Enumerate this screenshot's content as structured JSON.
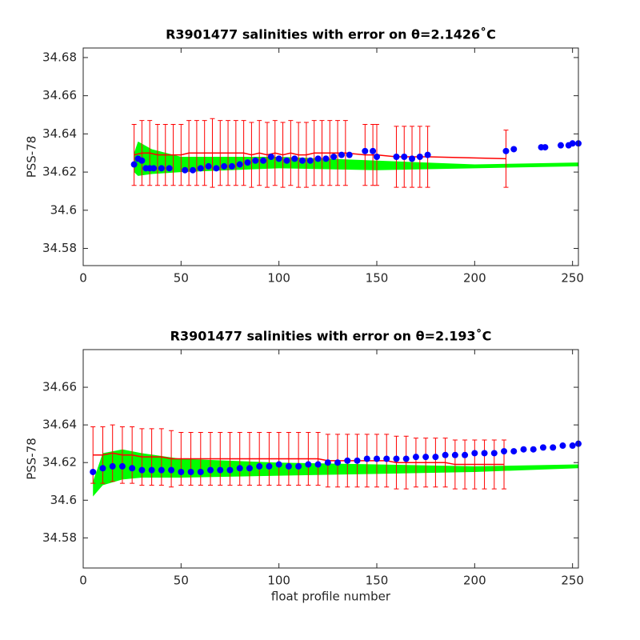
{
  "chart_data": [
    {
      "type": "errorbar",
      "title": "R3901477 salinities with error on θ=2.1426˚C",
      "ylabel": "PSS-78",
      "xlim": [
        0,
        253
      ],
      "xticks": [
        0,
        50,
        100,
        150,
        200,
        250
      ],
      "ylim": [
        34.571,
        34.685
      ],
      "yticks": [
        34.58,
        34.6,
        34.62,
        34.64,
        34.66,
        34.68
      ],
      "band": {
        "color": "#00ff00",
        "x": [
          26,
          28,
          35,
          50,
          100,
          150,
          200,
          253
        ],
        "lower": [
          34.62,
          34.618,
          34.619,
          34.62,
          34.622,
          34.621,
          34.622,
          34.623
        ],
        "upper": [
          34.63,
          34.636,
          34.632,
          34.628,
          34.628,
          34.626,
          34.624,
          34.625
        ]
      },
      "mapped": {
        "color": "#ff0000",
        "x": [
          26,
          30,
          34,
          38,
          42,
          46,
          50,
          54,
          58,
          62,
          66,
          70,
          74,
          78,
          82,
          86,
          90,
          94,
          98,
          102,
          106,
          110,
          114,
          118,
          122,
          126,
          130,
          134,
          144,
          148,
          150,
          160,
          164,
          168,
          172,
          176,
          216
        ],
        "values": [
          34.629,
          34.63,
          34.63,
          34.629,
          34.629,
          34.629,
          34.629,
          34.63,
          34.63,
          34.63,
          34.63,
          34.63,
          34.63,
          34.63,
          34.63,
          34.629,
          34.63,
          34.629,
          34.63,
          34.629,
          34.63,
          34.629,
          34.629,
          34.63,
          34.63,
          34.63,
          34.63,
          34.63,
          34.629,
          34.629,
          34.629,
          34.628,
          34.628,
          34.628,
          34.628,
          34.628,
          34.627
        ],
        "errors": [
          0.016,
          0.017,
          0.017,
          0.016,
          0.016,
          0.016,
          0.016,
          0.017,
          0.017,
          0.017,
          0.018,
          0.017,
          0.017,
          0.017,
          0.017,
          0.017,
          0.017,
          0.017,
          0.017,
          0.017,
          0.017,
          0.017,
          0.017,
          0.017,
          0.017,
          0.017,
          0.017,
          0.017,
          0.016,
          0.016,
          0.016,
          0.016,
          0.016,
          0.016,
          0.016,
          0.016,
          0.015
        ]
      },
      "float": {
        "color": "#0000ff",
        "x": [
          26,
          28,
          30,
          32,
          34,
          36,
          40,
          44,
          52,
          56,
          60,
          64,
          68,
          72,
          76,
          80,
          84,
          88,
          92,
          96,
          100,
          104,
          108,
          112,
          116,
          120,
          124,
          128,
          132,
          136,
          144,
          148,
          150,
          160,
          164,
          168,
          172,
          176,
          216,
          220,
          234,
          236,
          244,
          248,
          250,
          253
        ],
        "values": [
          34.624,
          34.627,
          34.626,
          34.622,
          34.622,
          34.622,
          34.622,
          34.622,
          34.621,
          34.621,
          34.622,
          34.623,
          34.622,
          34.623,
          34.623,
          34.624,
          34.625,
          34.626,
          34.626,
          34.628,
          34.627,
          34.626,
          34.627,
          34.626,
          34.626,
          34.627,
          34.627,
          34.628,
          34.629,
          34.629,
          34.631,
          34.631,
          34.628,
          34.628,
          34.628,
          34.627,
          34.628,
          34.629,
          34.631,
          34.632,
          34.633,
          34.633,
          34.634,
          34.634,
          34.635,
          34.635
        ]
      }
    },
    {
      "type": "errorbar",
      "title": "R3901477 salinities with error on θ=2.193˚C",
      "ylabel": "PSS-78",
      "xlabel": "float profile number",
      "xlim": [
        0,
        253
      ],
      "xticks": [
        0,
        50,
        100,
        150,
        200,
        250
      ],
      "ylim": [
        34.564,
        34.68
      ],
      "yticks": [
        34.58,
        34.6,
        34.62,
        34.64,
        34.66
      ],
      "band": {
        "color": "#00ff00",
        "x": [
          5,
          10,
          20,
          30,
          50,
          100,
          150,
          200,
          253
        ],
        "lower": [
          34.602,
          34.608,
          34.611,
          34.612,
          34.612,
          34.613,
          34.614,
          34.615,
          34.617
        ],
        "upper": [
          34.61,
          34.625,
          34.627,
          34.625,
          34.622,
          34.62,
          34.619,
          34.618,
          34.619
        ]
      },
      "mapped": {
        "color": "#ff0000",
        "x": [
          5,
          10,
          15,
          20,
          25,
          30,
          35,
          40,
          45,
          50,
          55,
          60,
          65,
          70,
          75,
          80,
          85,
          90,
          95,
          100,
          105,
          110,
          115,
          120,
          125,
          130,
          135,
          140,
          145,
          150,
          155,
          160,
          165,
          170,
          175,
          180,
          185,
          190,
          195,
          200,
          205,
          210,
          215
        ],
        "values": [
          34.624,
          34.624,
          34.625,
          34.624,
          34.624,
          34.623,
          34.623,
          34.623,
          34.622,
          34.622,
          34.622,
          34.622,
          34.622,
          34.622,
          34.622,
          34.622,
          34.622,
          34.622,
          34.622,
          34.622,
          34.622,
          34.622,
          34.622,
          34.622,
          34.621,
          34.621,
          34.621,
          34.621,
          34.621,
          34.621,
          34.621,
          34.62,
          34.62,
          34.62,
          34.62,
          34.62,
          34.62,
          34.619,
          34.619,
          34.619,
          34.619,
          34.619,
          34.619
        ],
        "errors": [
          0.015,
          0.015,
          0.015,
          0.015,
          0.015,
          0.015,
          0.015,
          0.015,
          0.015,
          0.014,
          0.014,
          0.014,
          0.014,
          0.014,
          0.014,
          0.014,
          0.014,
          0.014,
          0.014,
          0.014,
          0.014,
          0.014,
          0.014,
          0.014,
          0.014,
          0.014,
          0.014,
          0.014,
          0.014,
          0.014,
          0.014,
          0.014,
          0.014,
          0.013,
          0.013,
          0.013,
          0.013,
          0.013,
          0.013,
          0.013,
          0.013,
          0.013,
          0.013
        ]
      },
      "float": {
        "color": "#0000ff",
        "x": [
          5,
          10,
          15,
          20,
          25,
          30,
          35,
          40,
          45,
          50,
          55,
          60,
          65,
          70,
          75,
          80,
          85,
          90,
          95,
          100,
          105,
          110,
          115,
          120,
          125,
          130,
          135,
          140,
          145,
          150,
          155,
          160,
          165,
          170,
          175,
          180,
          185,
          190,
          195,
          200,
          205,
          210,
          215,
          220,
          225,
          230,
          235,
          240,
          245,
          250,
          253
        ],
        "values": [
          34.615,
          34.617,
          34.618,
          34.618,
          34.617,
          34.616,
          34.616,
          34.616,
          34.616,
          34.615,
          34.615,
          34.615,
          34.616,
          34.616,
          34.616,
          34.617,
          34.617,
          34.618,
          34.618,
          34.619,
          34.618,
          34.618,
          34.619,
          34.619,
          34.62,
          34.62,
          34.621,
          34.621,
          34.622,
          34.622,
          34.622,
          34.622,
          34.622,
          34.623,
          34.623,
          34.623,
          34.624,
          34.624,
          34.624,
          34.625,
          34.625,
          34.625,
          34.626,
          34.626,
          34.627,
          34.627,
          34.628,
          34.628,
          34.629,
          34.629,
          34.63
        ]
      }
    }
  ]
}
